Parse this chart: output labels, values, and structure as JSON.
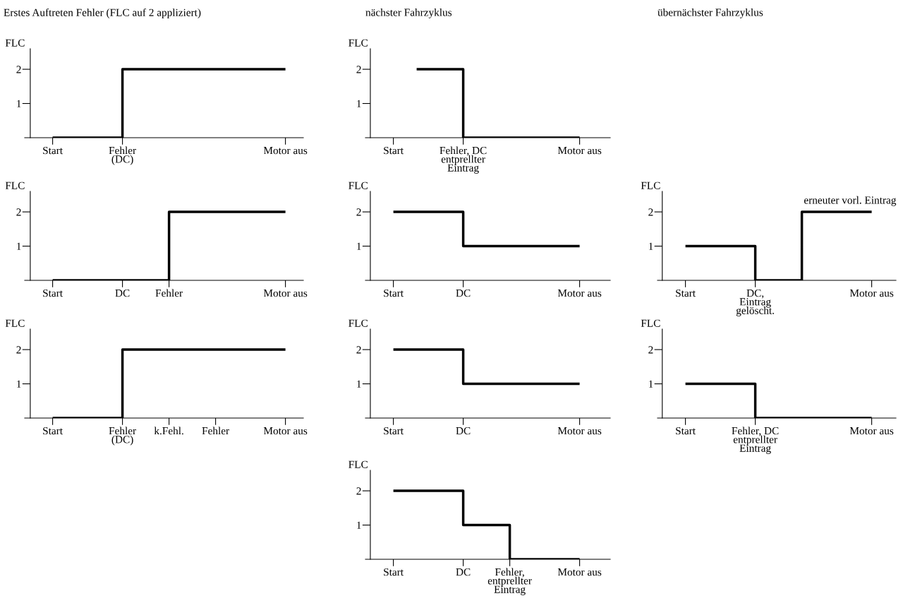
{
  "chart_data": [
    {
      "type": "step",
      "title": "Erstes Auftreten Fehler (FLC auf 2 appliziert)",
      "ylabel": "FLC",
      "categories": [
        "Start",
        null,
        null,
        "Fehler\n(DC)",
        null,
        null,
        null,
        null,
        null,
        null,
        "Motor aus"
      ],
      "values": [
        0,
        0,
        0,
        2,
        2,
        2,
        2,
        2,
        2,
        2,
        2
      ],
      "color": "#000000",
      "ylim": [
        0,
        2.6
      ],
      "yticks": [
        1,
        2
      ],
      "grid": false
    },
    {
      "type": "step",
      "title": "nächster Fahrzyklus",
      "ylabel": "FLC",
      "categories": [
        "Start",
        null,
        null,
        "Fehler, DC\nentprellter\nEintrag",
        null,
        null,
        null,
        null,
        "Motor aus"
      ],
      "values": [
        null,
        2,
        2,
        0,
        0,
        0,
        0,
        0,
        0
      ],
      "color": "#000000",
      "ylim": [
        0,
        2.6
      ],
      "yticks": [
        1,
        2
      ],
      "grid": false
    },
    {
      "type": "step",
      "ylabel": "FLC",
      "categories": [
        "Start",
        null,
        null,
        "DC",
        null,
        "Fehler",
        null,
        null,
        null,
        null,
        "Motor aus"
      ],
      "values": [
        0,
        0,
        0,
        0,
        0,
        2,
        2,
        2,
        2,
        2,
        2
      ],
      "color": "#000000",
      "ylim": [
        0,
        2.6
      ],
      "yticks": [
        1,
        2
      ],
      "grid": false
    },
    {
      "type": "step",
      "ylabel": "FLC",
      "categories": [
        "Start",
        null,
        null,
        "DC",
        null,
        null,
        null,
        null,
        "Motor aus"
      ],
      "values": [
        2,
        2,
        2,
        1,
        1,
        1,
        1,
        1,
        1
      ],
      "color": "#000000",
      "ylim": [
        0,
        2.6
      ],
      "yticks": [
        1,
        2
      ],
      "grid": false
    },
    {
      "type": "step",
      "title": "übernächster Fahrzyklus",
      "ylabel": "FLC",
      "categories": [
        "Start",
        null,
        null,
        "DC,\nEintrag\ngelöscht.",
        null,
        null,
        null,
        null,
        "Motor aus"
      ],
      "values": [
        1,
        1,
        1,
        0,
        0,
        2,
        2,
        2,
        2
      ],
      "color": "#000000",
      "ylim": [
        0,
        2.6
      ],
      "yticks": [
        1,
        2
      ],
      "annotations": [
        {
          "text": "erneuter vorl. Eintrag",
          "y": 2
        }
      ],
      "grid": false
    },
    {
      "type": "step",
      "ylabel": "FLC",
      "categories": [
        "Start",
        null,
        null,
        "Fehler\n(DC)",
        null,
        "k.Fehl.",
        null,
        "Fehler",
        null,
        null,
        "Motor aus"
      ],
      "values": [
        0,
        0,
        0,
        2,
        2,
        2,
        2,
        2,
        2,
        2,
        2
      ],
      "color": "#000000",
      "ylim": [
        0,
        2.6
      ],
      "yticks": [
        1,
        2
      ],
      "grid": false
    },
    {
      "type": "step",
      "ylabel": "FLC",
      "categories": [
        "Start",
        null,
        null,
        "DC",
        null,
        null,
        null,
        null,
        "Motor aus"
      ],
      "values": [
        2,
        2,
        2,
        1,
        1,
        1,
        1,
        1,
        1
      ],
      "color": "#000000",
      "ylim": [
        0,
        2.6
      ],
      "yticks": [
        1,
        2
      ],
      "grid": false
    },
    {
      "type": "step",
      "ylabel": "FLC",
      "categories": [
        "Start",
        null,
        null,
        "Fehler, DC\nentprellter\nEintrag",
        null,
        null,
        null,
        null,
        "Motor aus"
      ],
      "values": [
        1,
        1,
        1,
        0,
        0,
        0,
        0,
        0,
        0
      ],
      "color": "#000000",
      "ylim": [
        0,
        2.6
      ],
      "yticks": [
        1,
        2
      ],
      "grid": false
    },
    {
      "type": "step",
      "ylabel": "FLC",
      "categories": [
        "Start",
        null,
        null,
        "DC",
        null,
        "Fehler,\nentprellter\nEintrag",
        null,
        null,
        "Motor aus"
      ],
      "values": [
        2,
        2,
        2,
        1,
        1,
        0,
        0,
        0,
        0
      ],
      "color": "#000000",
      "ylim": [
        0,
        2.6
      ],
      "yticks": [
        1,
        2
      ],
      "grid": false
    }
  ]
}
